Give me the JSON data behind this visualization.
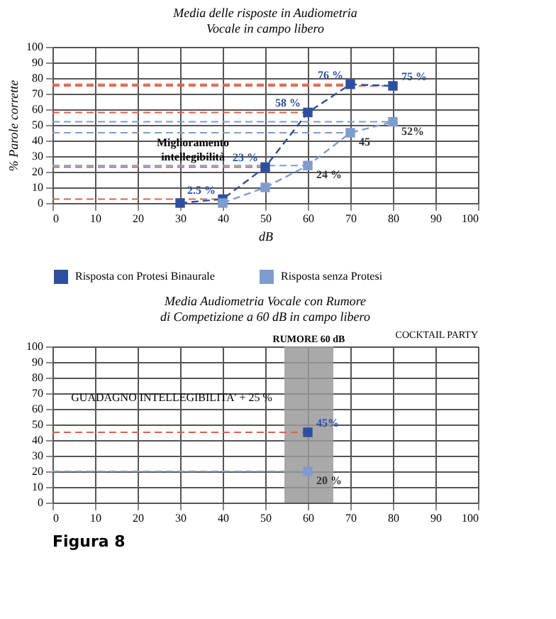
{
  "chart_data": [
    {
      "type": "line",
      "title": [
        "Media delle risposte in Audiometria",
        "Vocale in campo libero"
      ],
      "ylabel": "% Parole corrette",
      "xlabel": "dB",
      "xlim": [
        0,
        100
      ],
      "xticks": [
        0,
        10,
        20,
        30,
        40,
        50,
        60,
        70,
        80,
        90,
        100
      ],
      "ylim": [
        0,
        100
      ],
      "yticks": [
        0,
        10,
        20,
        30,
        40,
        50,
        60,
        70,
        80,
        90,
        100
      ],
      "grid": true,
      "legend": "bottom",
      "marker": "square",
      "line_style": "dashed",
      "series": [
        {
          "name": "Risposta con Protesi Binaurale",
          "color": "#2e4fa0",
          "x": [
            30,
            40,
            50,
            60,
            70,
            80
          ],
          "values": [
            0,
            2.5,
            23,
            58,
            76,
            75
          ],
          "value_labels": [
            null,
            "2.5 %",
            "23 %",
            "58 %",
            "76 %",
            "75 %"
          ]
        },
        {
          "name": "Risposta senza Protesi",
          "color": "#7f9ccf",
          "x": [
            40,
            50,
            60,
            70,
            80
          ],
          "values": [
            0,
            10,
            24,
            45,
            52
          ],
          "value_labels": [
            null,
            null,
            "24 %",
            "45",
            "52%"
          ]
        }
      ],
      "ref_lines": [
        {
          "axis": "y",
          "value": 76,
          "color": "#e0604a",
          "line_style": "dashed"
        },
        {
          "axis": "y",
          "value": 75,
          "color": "#e0604a",
          "line_style": "dashed"
        },
        {
          "axis": "y",
          "value": 58,
          "color": "#e0604a",
          "line_style": "dashed"
        },
        {
          "axis": "y",
          "value": 23,
          "color": "#e0604a",
          "line_style": "dashed"
        },
        {
          "axis": "y",
          "value": 2.5,
          "color": "#e0604a",
          "line_style": "dashed"
        },
        {
          "axis": "y",
          "value": 52,
          "color": "#7f9ccf",
          "line_style": "dashed"
        },
        {
          "axis": "y",
          "value": 45,
          "color": "#7f9ccf",
          "line_style": "dashed"
        },
        {
          "axis": "y",
          "value": 24,
          "color": "#7f9ccf",
          "line_style": "dashed"
        }
      ],
      "annotations": [
        "Miglioramento intellegibilità"
      ]
    },
    {
      "type": "scatter",
      "title": [
        "Media Audiometria Vocale con Rumore",
        "di Competizione a 60 dB in campo libero"
      ],
      "xlim": [
        0,
        100
      ],
      "xticks": [
        0,
        10,
        20,
        30,
        40,
        50,
        60,
        70,
        80,
        90,
        100
      ],
      "ylim": [
        0,
        100
      ],
      "yticks": [
        0,
        10,
        20,
        30,
        40,
        50,
        60,
        70,
        80,
        90,
        100
      ],
      "grid": true,
      "marker": "square",
      "series": [
        {
          "color": "#2e4fa0",
          "x": [
            60
          ],
          "values": [
            45
          ],
          "value_labels": [
            "45%"
          ]
        },
        {
          "color": "#7f9ccf",
          "x": [
            60
          ],
          "values": [
            20
          ],
          "value_labels": [
            "20 %"
          ]
        }
      ],
      "ref_lines": [
        {
          "axis": "y",
          "value": 45,
          "color": "#e0604a",
          "line_style": "dashed"
        },
        {
          "axis": "y",
          "value": 20,
          "color": "#7f9ccf",
          "line_style": "dashed"
        }
      ],
      "bands": [
        {
          "axis": "x",
          "from": 54.5,
          "to": 66,
          "label": "RUMORE 60 dB",
          "color": "#9a9a9a"
        }
      ],
      "annotations": [
        "COCKTAIL PARTY",
        "GUADAGNO INTELLEGIBILITA' + 25 %",
        "Figura 8"
      ]
    }
  ]
}
